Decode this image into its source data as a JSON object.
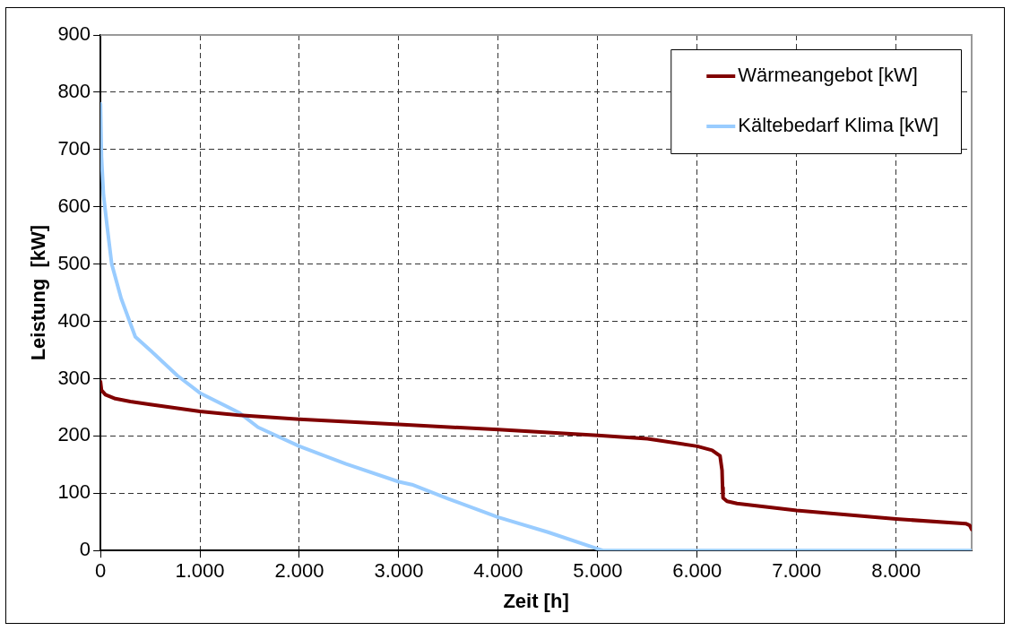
{
  "chart_data": {
    "type": "line",
    "xlabel": "Zeit [h]",
    "ylabel": "Leistung  [kW]",
    "xlim": [
      0,
      8760
    ],
    "ylim": [
      0,
      900
    ],
    "xticks": [
      0,
      {
        "value": 1000,
        "label": "1.000"
      },
      {
        "value": 2000,
        "label": "2.000"
      },
      {
        "value": 3000,
        "label": "3.000"
      },
      {
        "value": 4000,
        "label": "4.000"
      },
      {
        "value": 5000,
        "label": "5.000"
      },
      {
        "value": 6000,
        "label": "6.000"
      },
      {
        "value": 7000,
        "label": "7.000"
      },
      {
        "value": 8000,
        "label": "8.000"
      }
    ],
    "yticks": [
      0,
      100,
      200,
      300,
      400,
      500,
      600,
      700,
      800,
      900
    ],
    "grid": true,
    "legend": "top right",
    "marker": "none",
    "line_style": "solid",
    "series": [
      {
        "name": "Wärmeangebot [kW]",
        "color": "#800000",
        "x": [
          0,
          10,
          50,
          150,
          300,
          500,
          1000,
          1400,
          2000,
          3000,
          4000,
          5000,
          5500,
          6000,
          6150,
          6230,
          6250,
          6255,
          6260,
          6300,
          6400,
          7000,
          8000,
          8700,
          8740,
          8760
        ],
        "values": [
          295,
          280,
          272,
          265,
          260,
          255,
          243,
          236,
          229,
          220,
          211,
          201,
          195,
          182,
          175,
          165,
          140,
          110,
          92,
          86,
          82,
          70,
          55,
          47,
          44,
          37
        ]
      },
      {
        "name": "Kältebedarf Klima [kW]",
        "color": "#99ccff",
        "x": [
          0,
          10,
          30,
          66,
          113,
          208,
          350,
          510,
          775,
          1000,
          1400,
          1585,
          2000,
          2470,
          3000,
          3132,
          3500,
          4000,
          4500,
          5000,
          5050,
          6000,
          7000,
          8000,
          8760
        ],
        "values": [
          780,
          688,
          621,
          567,
          500,
          440,
          373,
          348,
          305,
          275,
          240,
          215,
          182,
          151,
          120,
          115,
          90,
          58,
          32,
          3,
          0,
          0,
          0,
          0,
          0
        ]
      }
    ]
  }
}
